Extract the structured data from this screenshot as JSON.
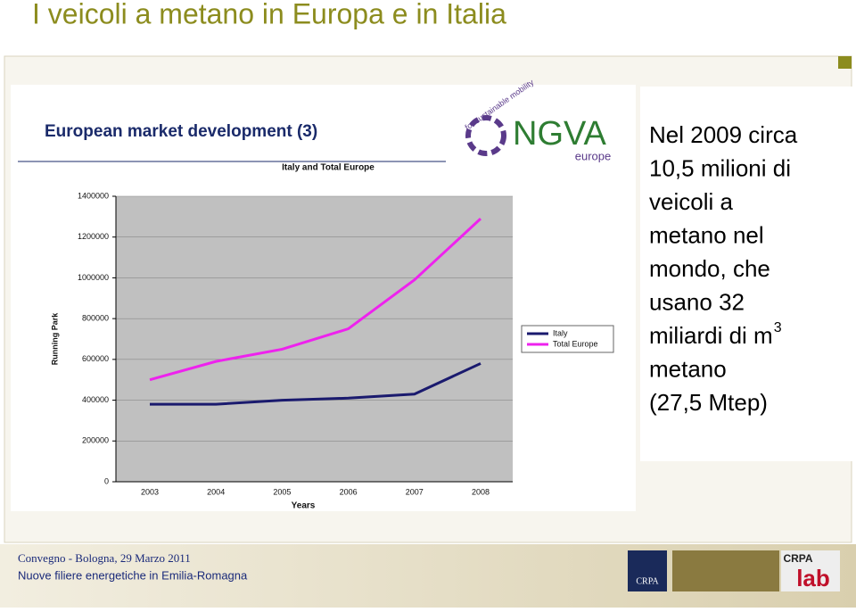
{
  "slide": {
    "title": "I veicoli a metano in Europa e in Italia",
    "text": {
      "lines": [
        "Nel 2009 circa",
        "10,5 milioni di",
        "veicoli a",
        "metano nel",
        "mondo, che",
        "usano 32",
        "miliardi di m",
        "metano",
        "(27,5 Mtep)"
      ],
      "superscript": "3"
    }
  },
  "logo": {
    "name": "NGVA",
    "region": "europe",
    "motto": "for sustainable mobility"
  },
  "footer": {
    "event": "Convegno  - Bologna, 29 Marzo 2011",
    "subtitle": "Nuove filiere energetiche in Emilia-Romagna",
    "logo_left": "CRPA",
    "logo_right": "CRPA",
    "logo_right_word": "lab"
  },
  "chart_data": {
    "type": "line",
    "title": "European market development (3)",
    "subtitle": "Italy and Total Europe",
    "x_label": "Years",
    "y_label": "Running Park",
    "categories": [
      "2003",
      "2004",
      "2005",
      "2006",
      "2007",
      "2008"
    ],
    "series": [
      {
        "name": "Italy",
        "color": "#1a1a6e",
        "values": [
          380000,
          380000,
          400000,
          410000,
          430000,
          580000
        ]
      },
      {
        "name": "Total Europe",
        "color": "#ee22ee",
        "values": [
          500000,
          590000,
          650000,
          750000,
          990000,
          1290000
        ]
      }
    ],
    "ylim": [
      0,
      1400000
    ],
    "yticks": [
      0,
      200000,
      400000,
      600000,
      800000,
      1000000,
      1200000,
      1400000
    ],
    "grid": true,
    "legend": "right"
  }
}
